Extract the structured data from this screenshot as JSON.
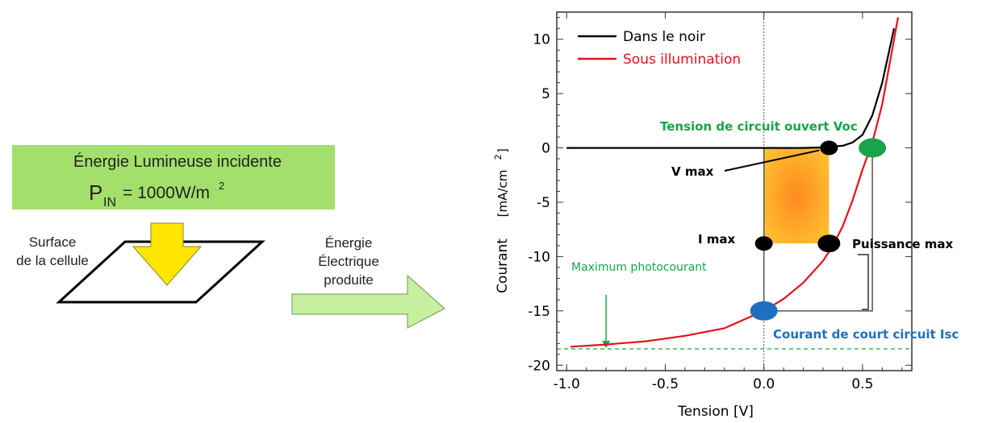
{
  "left": {
    "energy_box": {
      "line1": "Énergie Lumineuse incidente",
      "p_letter": "P",
      "p_sub": "IN",
      "p_value": "= 1000W/m",
      "p_sup": "2",
      "fill": "#a3e06b"
    },
    "surface_label_1": "Surface",
    "surface_label_2": "de la cellule",
    "elec_label_1": "Énergie",
    "elec_label_2": "Électrique",
    "elec_label_3": "produite",
    "arrow_yellow": "#ffe600",
    "arrow_green": "#c6f0a0"
  },
  "chart_data": {
    "type": "line",
    "xlabel": "Tension  [V]",
    "ylabel_main": "Courant",
    "ylabel_unit": "[mA/cm",
    "ylabel_sup": "2",
    "ylabel_end": "]",
    "xlim": [
      -1.05,
      0.75
    ],
    "ylim": [
      -20.5,
      12.5
    ],
    "xticks": [
      -1.0,
      -0.5,
      0.0,
      0.5
    ],
    "xtick_labels": [
      "-1.0",
      "-0.5",
      "0.0",
      "0.5"
    ],
    "yticks": [
      10,
      5,
      0,
      -5,
      -10,
      -15,
      -20
    ],
    "ytick_labels": [
      "10",
      "5",
      "0",
      "-5",
      "-10",
      "-15",
      "-20"
    ],
    "legend": {
      "placement": "top-left",
      "items": [
        {
          "label": "Dans le noir",
          "color": "#000000"
        },
        {
          "label": "Sous illumination",
          "color": "#e8101a"
        }
      ]
    },
    "series": [
      {
        "name": "Dans le noir",
        "color": "#000000",
        "x": [
          -1.0,
          -0.5,
          0.0,
          0.2,
          0.3,
          0.4,
          0.45,
          0.5,
          0.55,
          0.6,
          0.63,
          0.66
        ],
        "y": [
          0.0,
          0.0,
          0.0,
          0.0,
          0.05,
          0.2,
          0.5,
          1.2,
          3.0,
          6.0,
          8.5,
          11.0
        ]
      },
      {
        "name": "Sous illumination",
        "color": "#e8101a",
        "x": [
          -0.98,
          -0.8,
          -0.6,
          -0.4,
          -0.2,
          0.0,
          0.1,
          0.2,
          0.3,
          0.35,
          0.4,
          0.45,
          0.5,
          0.55,
          0.6,
          0.65,
          0.68
        ],
        "y": [
          -18.3,
          -18.1,
          -17.8,
          -17.3,
          -16.6,
          -15.0,
          -13.9,
          -12.4,
          -10.4,
          -9.0,
          -7.2,
          -4.8,
          -2.0,
          0.5,
          4.0,
          9.0,
          12.0
        ]
      }
    ],
    "max_photocurrent": {
      "y": -18.5,
      "arrow_x": -0.8,
      "label": "Maximum photocourant",
      "color": "#1aa34a"
    },
    "points": [
      {
        "name": "Voc",
        "x": 0.55,
        "y": 0.0,
        "color": "#1aa34a",
        "label": "Tension de circuit ouvert Voc",
        "label_color": "#1aa34a"
      },
      {
        "name": "Isc",
        "x": 0.0,
        "y": -15.0,
        "color": "#1f6fc1",
        "label": "Courant de court circuit Isc",
        "label_color": "#1f6fc1"
      },
      {
        "name": "Vmax",
        "x": 0.33,
        "y": 0.0,
        "color": "#000000",
        "label": "V max",
        "label_color": "#000000"
      },
      {
        "name": "Imax",
        "x": 0.0,
        "y": -8.8,
        "color": "#000000",
        "label": "I max",
        "label_color": "#000000"
      },
      {
        "name": "Pmax",
        "x": 0.33,
        "y": -8.8,
        "color": "#000000",
        "label": "Puissance max",
        "label_color": "#000000"
      }
    ],
    "power_rect": {
      "x0": 0.0,
      "x1": 0.33,
      "y0": -8.8,
      "y1": 0.0,
      "color_inner": "#ff8a1f",
      "color_outer": "#ffc233"
    },
    "outer_rect": {
      "x0": 0.0,
      "x1": 0.55,
      "y0": -15.0,
      "y1": 0.0
    }
  }
}
